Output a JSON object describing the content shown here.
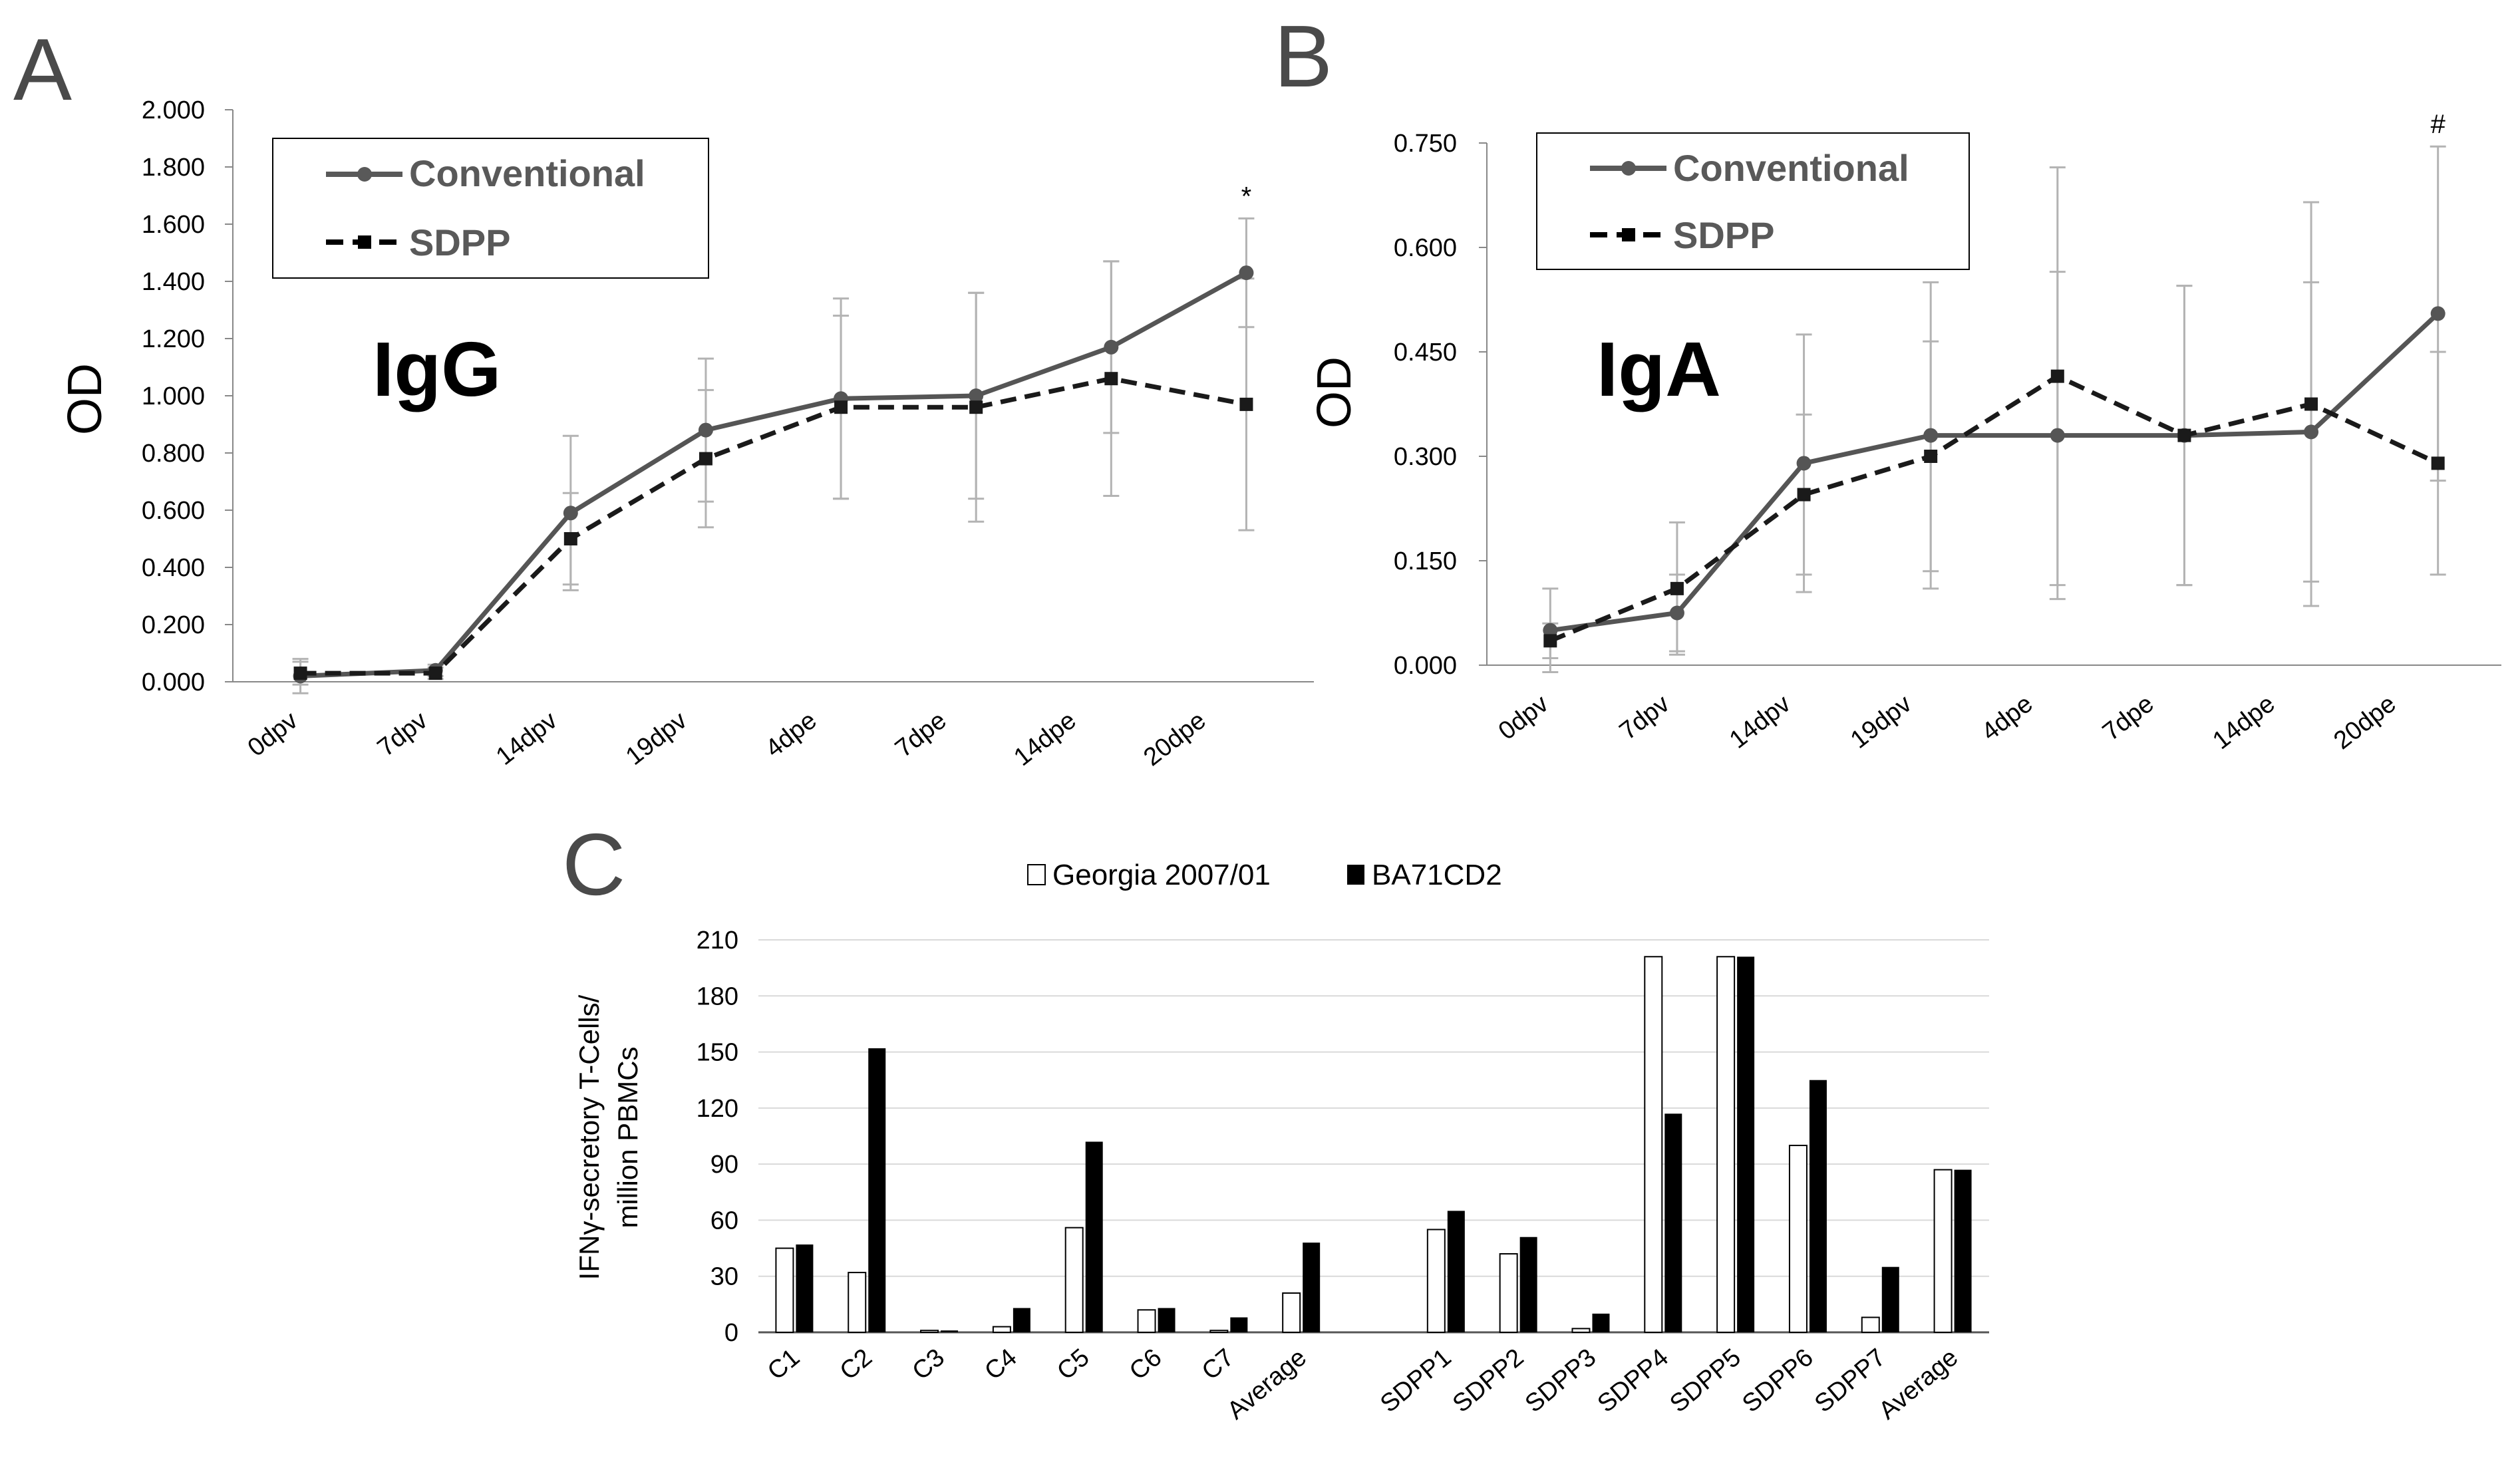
{
  "figure": {
    "panel_labels": [
      "A",
      "B",
      "C"
    ]
  },
  "chart_data": [
    {
      "panel": "A",
      "type": "line",
      "inner_label": "IgG",
      "ylabel": "OD",
      "categories": [
        "0dpv",
        "7dpv",
        "14dpv",
        "19dpv",
        "4dpe",
        "7dpe",
        "14dpe",
        "20dpe"
      ],
      "y_ticks": [
        "0.000",
        "0.200",
        "0.400",
        "0.600",
        "0.800",
        "1.000",
        "1.200",
        "1.400",
        "1.600",
        "1.800",
        "2.000"
      ],
      "ylim": [
        0,
        2.0
      ],
      "series": [
        {
          "name": "Conventional",
          "style": "solid",
          "marker": "circle",
          "values": [
            0.02,
            0.04,
            0.59,
            0.88,
            0.99,
            1.0,
            1.17,
            1.43
          ],
          "errors": [
            0.06,
            0.02,
            0.27,
            0.25,
            0.35,
            0.36,
            0.3,
            0.19
          ]
        },
        {
          "name": "SDPP",
          "style": "dashed",
          "marker": "square",
          "values": [
            0.03,
            0.03,
            0.5,
            0.78,
            0.96,
            0.96,
            1.06,
            0.97
          ],
          "errors": [
            0.04,
            0.02,
            0.16,
            0.24,
            0.32,
            0.4,
            0.41,
            0.44
          ]
        }
      ],
      "annotations": [
        {
          "category": "20dpe",
          "text": "*"
        }
      ]
    },
    {
      "panel": "B",
      "type": "line",
      "inner_label": "IgA",
      "ylabel": "OD",
      "categories": [
        "0dpv",
        "7dpv",
        "14dpv",
        "19dpv",
        "4dpe",
        "7dpe",
        "14dpe",
        "20dpe"
      ],
      "y_ticks": [
        "0.000",
        "0.150",
        "0.300",
        "0.450",
        "0.600",
        "0.750"
      ],
      "ylim": [
        0,
        0.75
      ],
      "series": [
        {
          "name": "Conventional",
          "style": "solid",
          "marker": "circle",
          "values": [
            0.05,
            0.075,
            0.29,
            0.33,
            0.33,
            0.33,
            0.335,
            0.505
          ],
          "errors": [
            0.06,
            0.055,
            0.185,
            0.22,
            0.235,
            0.215,
            0.215,
            0.24
          ]
        },
        {
          "name": "SDPP",
          "style": "dashed",
          "marker": "square",
          "values": [
            0.035,
            0.11,
            0.245,
            0.3,
            0.415,
            0.33,
            0.375,
            0.29
          ],
          "errors": [
            0.025,
            0.095,
            0.115,
            0.165,
            0.3,
            0.215,
            0.29,
            0.16
          ]
        }
      ],
      "annotations": [
        {
          "category": "20dpe",
          "text": "#"
        }
      ]
    },
    {
      "panel": "C",
      "type": "bar",
      "ylabel_lines": [
        "IFNγ-secretory T-Cells/",
        "million  PBMCs"
      ],
      "y_ticks": [
        "0",
        "30",
        "60",
        "90",
        "120",
        "150",
        "180",
        "210"
      ],
      "ylim": [
        0,
        210
      ],
      "categories": [
        "C1",
        "C2",
        "C3",
        "C4",
        "C5",
        "C6",
        "C7",
        "Average",
        "",
        "SDPP1",
        "SDPP2",
        "SDPP3",
        "SDPP4",
        "SDPP5",
        "SDPP6",
        "SDPP7",
        "Average"
      ],
      "series": [
        {
          "name": "Georgia 2007/01",
          "fill": "#ffffff",
          "values": [
            45,
            32,
            1,
            3,
            56,
            12,
            1,
            21,
            null,
            55,
            42,
            2,
            201,
            201,
            100,
            8,
            87
          ]
        },
        {
          "name": "BA71CD2",
          "fill": "#000000",
          "values": [
            47,
            152,
            1,
            13,
            102,
            13,
            8,
            48,
            null,
            65,
            51,
            10,
            117,
            201,
            135,
            35,
            87
          ]
        }
      ]
    }
  ]
}
